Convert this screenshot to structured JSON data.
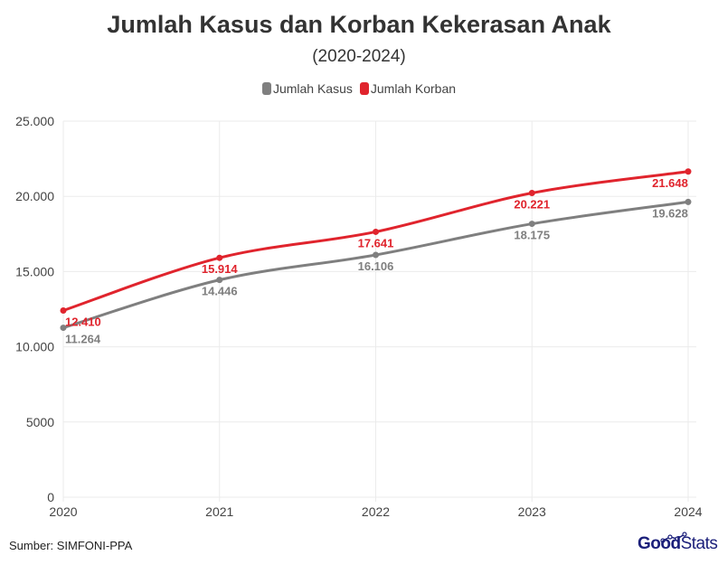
{
  "chart_data": {
    "type": "line",
    "title": "Jumlah Kasus dan Korban Kekerasan Anak",
    "subtitle": "(2020-2024)",
    "categories": [
      "2020",
      "2021",
      "2022",
      "2023",
      "2024"
    ],
    "series": [
      {
        "name": "Jumlah Kasus",
        "color": "#7f7f7f",
        "values": [
          11264,
          14446,
          16106,
          18175,
          19628
        ],
        "labels": [
          "11.264",
          "14.446",
          "16.106",
          "18.175",
          "19.628"
        ]
      },
      {
        "name": "Jumlah Korban",
        "color": "#e0242d",
        "values": [
          12410,
          15914,
          17641,
          20221,
          21648
        ],
        "labels": [
          "12.410",
          "15.914",
          "17.641",
          "20.221",
          "21.648"
        ]
      }
    ],
    "ylim": [
      0,
      25000
    ],
    "yticks": [
      0,
      5000,
      10000,
      15000,
      20000,
      25000
    ],
    "ytick_labels": [
      "0",
      "5000",
      "10.000",
      "15.000",
      "20.000",
      "25.000"
    ],
    "grid": true,
    "legend_position": "top-center"
  },
  "footer": {
    "source": "Sumber: SIMFONI-PPA",
    "logo_bold": "Good",
    "logo_light": "Stats"
  }
}
